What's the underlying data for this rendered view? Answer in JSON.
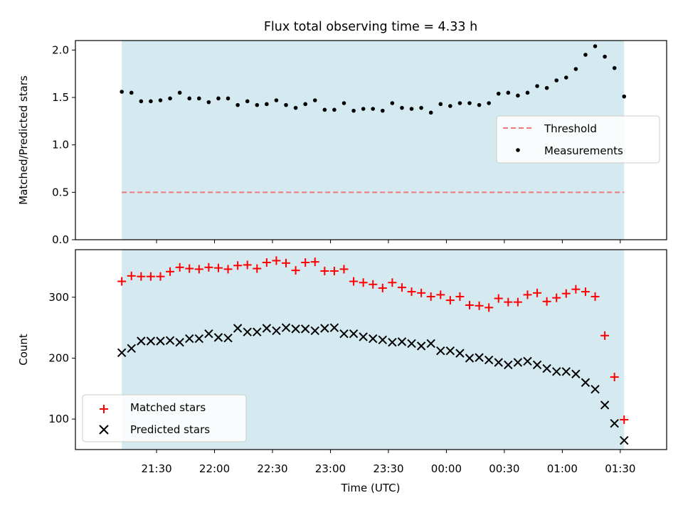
{
  "chart_data": {
    "title": "Flux total observing time = 4.33 h",
    "xlabel": "Time (UTC)",
    "x_tick_labels": [
      "21:30",
      "22:00",
      "22:30",
      "23:00",
      "23:30",
      "00:00",
      "00:30",
      "01:00",
      "01:30"
    ],
    "x_ticks_hours": [
      21.5,
      22.0,
      22.5,
      23.0,
      23.5,
      24.0,
      24.5,
      25.0,
      25.5
    ],
    "xlim_hours": [
      20.8,
      25.9
    ],
    "observing_window_hours": [
      21.2,
      25.5333
    ],
    "colors": {
      "window": "#d4eaf0",
      "threshold": "#f07878",
      "measurements": "#000000",
      "matched": "#ff0000",
      "predicted": "#000000"
    },
    "panels": [
      {
        "type": "scatter",
        "ylabel": "Matched/Predicted stars",
        "ylim": [
          0,
          2.1
        ],
        "yticks": [
          0.0,
          0.5,
          1.0,
          1.5,
          2.0
        ],
        "ytick_labels": [
          "0.0",
          "0.5",
          "1.0",
          "1.5",
          "2.0"
        ],
        "threshold": 0.5,
        "legend_position": "center-right",
        "legend": [
          {
            "label": "Threshold",
            "kind": "dashed-line"
          },
          {
            "label": "Measurements",
            "kind": "dot"
          }
        ],
        "series": [
          {
            "name": "Measurements",
            "x_start_hours": 21.2,
            "x_step_minutes": 5,
            "values": [
              1.56,
              1.55,
              1.46,
              1.46,
              1.47,
              1.49,
              1.55,
              1.49,
              1.49,
              1.45,
              1.49,
              1.49,
              1.42,
              1.46,
              1.42,
              1.43,
              1.47,
              1.42,
              1.39,
              1.43,
              1.47,
              1.37,
              1.37,
              1.44,
              1.36,
              1.38,
              1.38,
              1.36,
              1.44,
              1.39,
              1.38,
              1.39,
              1.34,
              1.43,
              1.41,
              1.44,
              1.44,
              1.42,
              1.44,
              1.54,
              1.55,
              1.52,
              1.55,
              1.62,
              1.6,
              1.68,
              1.71,
              1.8,
              1.95,
              2.04,
              1.93,
              1.81,
              1.51
            ]
          }
        ]
      },
      {
        "type": "scatter",
        "ylabel": "Count",
        "ylim": [
          50,
          378
        ],
        "yticks": [
          100,
          200,
          300
        ],
        "ytick_labels": [
          "100",
          "200",
          "300"
        ],
        "legend_position": "lower-left",
        "legend": [
          {
            "label": "Matched stars",
            "kind": "plus"
          },
          {
            "label": "Predicted stars",
            "kind": "x"
          }
        ],
        "series": [
          {
            "name": "Matched stars",
            "x_start_hours": 21.2,
            "x_step_minutes": 5,
            "values": [
              326,
              335,
              334,
              334,
              334,
              342,
              349,
              347,
              346,
              349,
              348,
              346,
              352,
              353,
              347,
              357,
              360,
              356,
              344,
              357,
              358,
              343,
              343,
              346,
              326,
              324,
              321,
              315,
              324,
              316,
              309,
              307,
              301,
              304,
              295,
              301,
              287,
              286,
              283,
              298,
              292,
              292,
              304,
              307,
              293,
              299,
              306,
              313,
              309,
              301,
              237,
              169,
              99
            ]
          },
          {
            "name": "Predicted stars",
            "x_start_hours": 21.2,
            "x_step_minutes": 5,
            "values": [
              209,
              216,
              228,
              228,
              228,
              229,
              226,
              232,
              232,
              240,
              234,
              233,
              249,
              243,
              243,
              249,
              245,
              250,
              248,
              248,
              245,
              249,
              250,
              240,
              240,
              235,
              232,
              230,
              226,
              227,
              224,
              220,
              224,
              212,
              212,
              208,
              200,
              201,
              197,
              193,
              189,
              193,
              195,
              189,
              183,
              178,
              178,
              174,
              160,
              149,
              123,
              93,
              65
            ]
          }
        ]
      }
    ]
  }
}
